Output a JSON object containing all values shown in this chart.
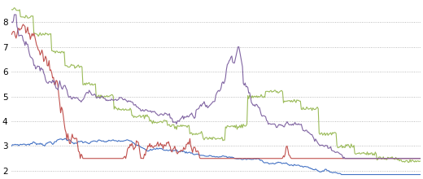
{
  "colors": {
    "blue": "#4472C4",
    "red": "#C0504D",
    "green": "#9BBB59",
    "purple": "#8064A2"
  },
  "ylim": [
    1.8,
    8.8
  ],
  "yticks": [
    2,
    3,
    4,
    5,
    6,
    7,
    8
  ],
  "background": "#FFFFFF",
  "grid_color": "#AAAAAA",
  "linewidth": 0.8,
  "n_points": 460
}
